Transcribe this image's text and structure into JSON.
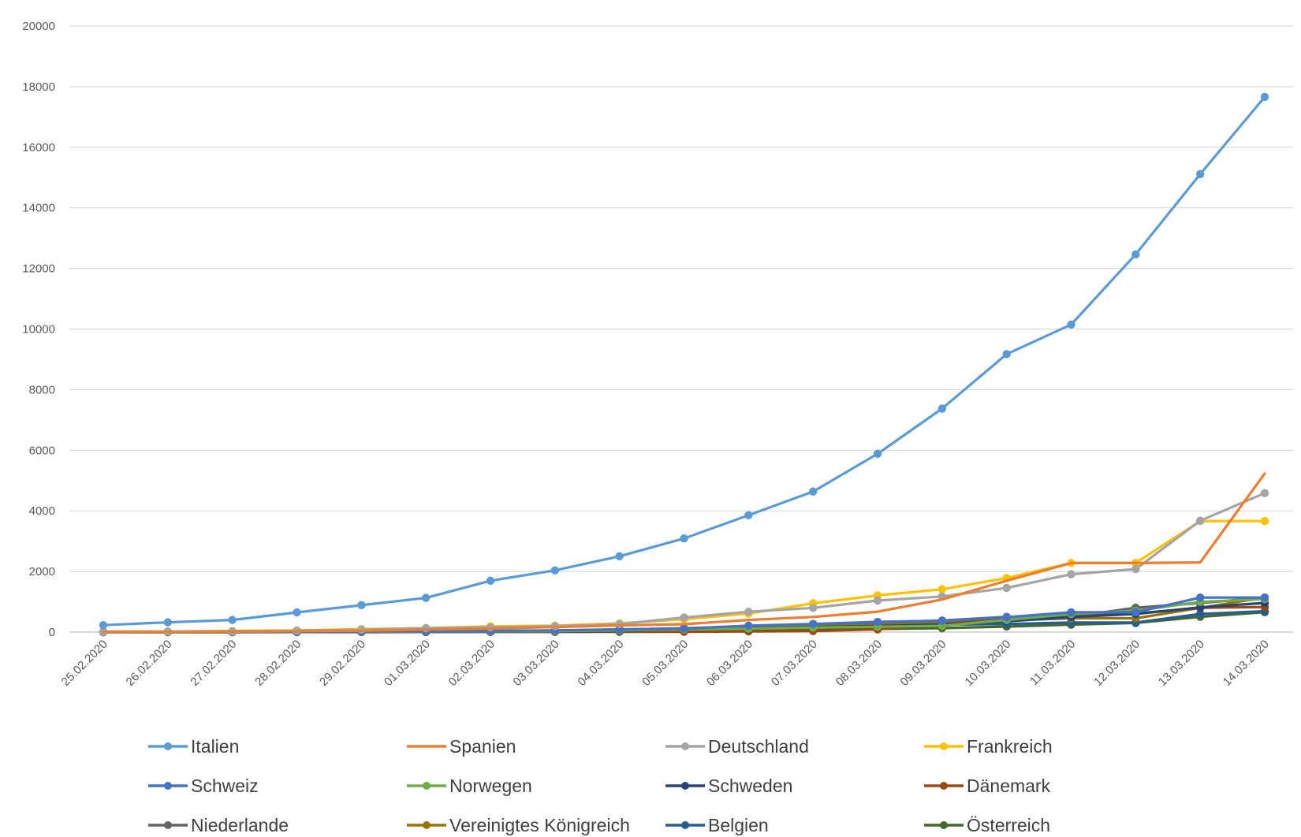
{
  "chart_data": {
    "type": "line",
    "title": "",
    "xlabel": "",
    "ylabel": "",
    "ylim": [
      0,
      20000
    ],
    "yticks": [
      0,
      2000,
      4000,
      6000,
      8000,
      10000,
      12000,
      14000,
      16000,
      18000,
      20000
    ],
    "grid": "horizontal",
    "legend_position": "bottom",
    "categories": [
      "25.02.2020",
      "26.02.2020",
      "27.02.2020",
      "28.02.2020",
      "29.02.2020",
      "01.03.2020",
      "02.03.2020",
      "03.03.2020",
      "04.03.2020",
      "05.03.2020",
      "06.03.2020",
      "07.03.2020",
      "08.03.2020",
      "09.03.2020",
      "10.03.2020",
      "11.03.2020",
      "12.03.2020",
      "13.03.2020",
      "14.03.2020"
    ],
    "series": [
      {
        "name": "Italien",
        "color": "#5B9BD5",
        "marker": "circle",
        "values": [
          229,
          322,
          400,
          650,
          888,
          1128,
          1694,
          2036,
          2502,
          3089,
          3858,
          4636,
          5883,
          7375,
          9172,
          10149,
          12462,
          15113,
          17660
        ]
      },
      {
        "name": "Spanien",
        "color": "#ED7D31",
        "marker": "none",
        "values": [
          2,
          6,
          15,
          32,
          45,
          84,
          120,
          165,
          222,
          259,
          400,
          500,
          673,
          1073,
          1695,
          2277,
          2277,
          2300,
          5232
        ]
      },
      {
        "name": "Deutschland",
        "color": "#A5A5A5",
        "marker": "circle",
        "values": [
          16,
          18,
          26,
          48,
          79,
          130,
          159,
          196,
          262,
          482,
          670,
          799,
          1040,
          1176,
          1457,
          1908,
          2078,
          3675,
          4585
        ]
      },
      {
        "name": "Frankreich",
        "color": "#FFC000",
        "marker": "circle",
        "values": [
          14,
          18,
          38,
          57,
          100,
          130,
          191,
          212,
          285,
          423,
          613,
          949,
          1209,
          1412,
          1784,
          2281,
          2281,
          3661,
          3661
        ]
      },
      {
        "name": "Schweiz",
        "color": "#4472C4",
        "marker": "circle",
        "values": [
          1,
          1,
          8,
          8,
          18,
          27,
          42,
          56,
          90,
          114,
          214,
          268,
          337,
          374,
          491,
          652,
          652,
          1139,
          1139
        ]
      },
      {
        "name": "Norwegen",
        "color": "#70AD47",
        "marker": "circle",
        "values": [
          0,
          1,
          1,
          6,
          15,
          19,
          25,
          32,
          56,
          87,
          108,
          147,
          176,
          205,
          400,
          598,
          702,
          996,
          1090
        ]
      },
      {
        "name": "Schweden",
        "color": "#264478",
        "marker": "circle",
        "values": [
          1,
          1,
          1,
          7,
          12,
          14,
          15,
          21,
          35,
          94,
          101,
          161,
          203,
          248,
          355,
          500,
          599,
          814,
          961
        ]
      },
      {
        "name": "Dänemark",
        "color": "#9E480E",
        "marker": "circle",
        "values": [
          0,
          1,
          1,
          2,
          3,
          4,
          4,
          6,
          10,
          10,
          23,
          35,
          90,
          262,
          442,
          615,
          615,
          801,
          827
        ]
      },
      {
        "name": "Niederlande",
        "color": "#636363",
        "marker": "circle",
        "values": [
          0,
          0,
          1,
          2,
          7,
          18,
          24,
          38,
          82,
          128,
          188,
          265,
          321,
          382,
          503,
          503,
          804,
          959,
          1135
        ]
      },
      {
        "name": "Vereinigtes Königreich",
        "color": "#997300",
        "marker": "circle",
        "values": [
          13,
          13,
          15,
          20,
          23,
          36,
          40,
          51,
          85,
          115,
          163,
          206,
          273,
          321,
          382,
          456,
          456,
          798,
          1140
        ]
      },
      {
        "name": "Belgien",
        "color": "#255E91",
        "marker": "circle",
        "values": [
          1,
          1,
          1,
          1,
          1,
          2,
          8,
          13,
          23,
          50,
          109,
          169,
          200,
          239,
          267,
          314,
          314,
          599,
          689
        ]
      },
      {
        "name": "Österreich",
        "color": "#43682B",
        "marker": "circle",
        "values": [
          2,
          2,
          3,
          3,
          9,
          14,
          18,
          21,
          29,
          41,
          55,
          79,
          104,
          131,
          182,
          246,
          302,
          504,
          655
        ]
      }
    ]
  }
}
